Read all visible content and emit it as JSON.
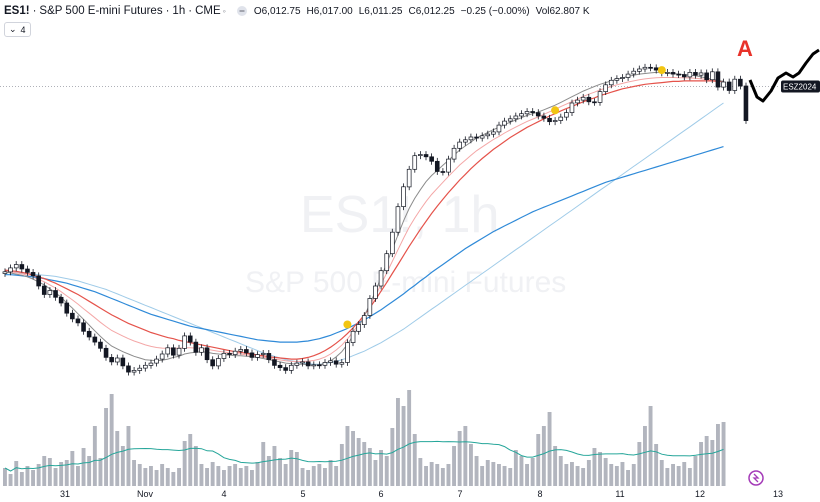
{
  "legend": {
    "symbol": "ES1!",
    "instrument": "S&P 500 E-mini Futures",
    "interval": "1h",
    "exchange": "CME",
    "open_label": "O",
    "open": "6,012.75",
    "high_label": "H",
    "high": "6,017.00",
    "low_label": "L",
    "low": "6,011.25",
    "close_label": "C",
    "close": "6,012.25",
    "change": "−0.25 (−0.00%)",
    "vol_label": "Vol",
    "vol": "62.807 K",
    "indicator_count": "4"
  },
  "watermark": {
    "symbol": "ES1!, 1h",
    "name": "S&P 500 E-mini Futures"
  },
  "price_tag": "ESZ2024",
  "annotation": "A",
  "colors": {
    "up": "#131722",
    "down": "#131722",
    "ma_gray": "#8c8c8c",
    "ma_red": "#e5534b",
    "ma_blue": "#2f8ad8",
    "ma_lightblue": "#9fcbe8",
    "ma_pink": "#f4a7a7",
    "volume": "#b2b5be",
    "vol_ma": "#26a69a",
    "marker": "#f2c511",
    "tag_bg": "#131722"
  },
  "chart_data": {
    "type": "line",
    "title": "ES1! · S&P 500 E-mini Futures · 1h · CME",
    "x_ticks": [
      "31",
      "Nov",
      "4",
      "5",
      "6",
      "7",
      "8",
      "11",
      "12",
      "13"
    ],
    "price": [
      5745,
      5752,
      5758,
      5750,
      5744,
      5738,
      5720,
      5705,
      5712,
      5700,
      5690,
      5672,
      5662,
      5655,
      5640,
      5630,
      5621,
      5610,
      5594,
      5586,
      5593,
      5579,
      5568,
      5571,
      5575,
      5580,
      5584,
      5591,
      5600,
      5611,
      5598,
      5610,
      5632,
      5621,
      5603,
      5611,
      5590,
      5579,
      5592,
      5601,
      5599,
      5605,
      5608,
      5602,
      5594,
      5599,
      5601,
      5590,
      5580,
      5576,
      5571,
      5580,
      5584,
      5586,
      5579,
      5581,
      5580,
      5585,
      5588,
      5582,
      5585,
      5620,
      5640,
      5652,
      5668,
      5698,
      5720,
      5747,
      5777,
      5815,
      5860,
      5895,
      5926,
      5950,
      5952,
      5948,
      5940,
      5922,
      5921,
      5944,
      5963,
      5974,
      5978,
      5983,
      5981,
      5985,
      5988,
      5992,
      6004,
      6011,
      6015,
      6020,
      6024,
      6028,
      6026,
      6020,
      6016,
      6010,
      6012,
      6018,
      6026,
      6043,
      6048,
      6053,
      6045,
      6044,
      6063,
      6075,
      6083,
      6086,
      6088,
      6094,
      6099,
      6103,
      6106,
      6105,
      6101,
      6096,
      6097,
      6094,
      6093,
      6089,
      6097,
      6092,
      6096,
      6084,
      6098,
      6071,
      6080,
      6065,
      6085,
      6073,
      6012
    ],
    "ma_gray": [
      5745,
      5743,
      5741,
      5739,
      5736,
      5732,
      5727,
      5722,
      5715,
      5708,
      5700,
      5690,
      5681,
      5671,
      5661,
      5651,
      5641,
      5631,
      5622,
      5614,
      5609,
      5604,
      5600,
      5596,
      5593,
      5590,
      5589,
      5588,
      5589,
      5591,
      5594,
      5596,
      5600,
      5602,
      5603,
      5604,
      5603,
      5601,
      5600,
      5599,
      5598,
      5597,
      5597,
      5596,
      5595,
      5594,
      5592,
      5590,
      5588,
      5586,
      5584,
      5583,
      5582,
      5582,
      5581,
      5580,
      5581,
      5583,
      5588,
      5595,
      5604,
      5617,
      5632,
      5648,
      5667,
      5688,
      5711,
      5735,
      5760,
      5785,
      5810,
      5835,
      5857,
      5875,
      5890,
      5904,
      5915,
      5924,
      5933,
      5942,
      5951,
      5960,
      5967,
      5974,
      5981,
      5986,
      5991,
      5996,
      6000,
      6005,
      6009,
      6013,
      6017,
      6021,
      6024,
      6027,
      6031,
      6035,
      6039,
      6044,
      6049,
      6054,
      6059,
      6064,
      6068,
      6072,
      6076,
      6079,
      6082,
      6085,
      6087,
      6090,
      6092,
      6094,
      6095,
      6096,
      6097,
      6097,
      6096,
      6095,
      6094,
      6093,
      6092,
      6091,
      6089,
      6087,
      6085,
      6083,
      6081
    ],
    "ma_red": [
      5748,
      5747,
      5746,
      5744,
      5742,
      5739,
      5736,
      5733,
      5729,
      5725,
      5720,
      5715,
      5710,
      5705,
      5699,
      5693,
      5687,
      5681,
      5675,
      5669,
      5664,
      5659,
      5654,
      5650,
      5646,
      5642,
      5638,
      5635,
      5632,
      5629,
      5627,
      5624,
      5622,
      5620,
      5618,
      5616,
      5614,
      5612,
      5610,
      5608,
      5606,
      5604,
      5603,
      5601,
      5600,
      5598,
      5597,
      5595,
      5594,
      5593,
      5592,
      5591,
      5591,
      5592,
      5594,
      5597,
      5601,
      5606,
      5612,
      5619,
      5627,
      5636,
      5646,
      5657,
      5669,
      5682,
      5696,
      5711,
      5726,
      5742,
      5758,
      5774,
      5790,
      5805,
      5820,
      5834,
      5848,
      5861,
      5873,
      5885,
      5896,
      5907,
      5917,
      5927,
      5936,
      5945,
      5953,
      5961,
      5968,
      5975,
      5982,
      5988,
      5994,
      6000,
      6005,
      6010,
      6015,
      6020,
      6024,
      6029,
      6033,
      6037,
      6041,
      6045,
      6049,
      6052,
      6056,
      6059,
      6062,
      6065,
      6068,
      6070,
      6072,
      6074,
      6076,
      6077,
      6078,
      6079,
      6080,
      6081,
      6081,
      6082,
      6082,
      6082,
      6082,
      6082,
      6082,
      6081,
      6081
    ],
    "ma_blue": [
      5740,
      5740,
      5739,
      5738,
      5737,
      5736,
      5735,
      5733,
      5731,
      5729,
      5727,
      5725,
      5722,
      5719,
      5716,
      5713,
      5710,
      5706,
      5702,
      5698,
      5694,
      5690,
      5686,
      5682,
      5678,
      5674,
      5670,
      5667,
      5664,
      5661,
      5658,
      5655,
      5652,
      5649,
      5647,
      5645,
      5643,
      5641,
      5639,
      5637,
      5635,
      5633,
      5631,
      5629,
      5627,
      5625,
      5624,
      5623,
      5622,
      5621,
      5621,
      5621,
      5621,
      5622,
      5623,
      5625,
      5627,
      5630,
      5633,
      5637,
      5641,
      5645,
      5650,
      5655,
      5660,
      5666,
      5672,
      5678,
      5685,
      5692,
      5699,
      5706,
      5714,
      5721,
      5729,
      5736,
      5744,
      5751,
      5758,
      5765,
      5772,
      5779,
      5786,
      5792,
      5798,
      5804,
      5810,
      5816,
      5821,
      5826,
      5831,
      5836,
      5841,
      5846,
      5851,
      5855,
      5859,
      5863,
      5867,
      5871,
      5875,
      5879,
      5883,
      5887,
      5891,
      5895,
      5899,
      5903,
      5906,
      5909,
      5912,
      5915,
      5918,
      5921,
      5924,
      5927,
      5930,
      5933,
      5936,
      5939,
      5942,
      5945,
      5948,
      5951,
      5954,
      5957,
      5960,
      5963,
      5966
    ],
    "ma_lightblue": [
      5745,
      5745,
      5744,
      5743,
      5742,
      5741,
      5740,
      5739,
      5738,
      5737,
      5735,
      5733,
      5731,
      5729,
      5726,
      5723,
      5720,
      5717,
      5714,
      5710,
      5706,
      5702,
      5698,
      5694,
      5690,
      5686,
      5682,
      5678,
      5674,
      5670,
      5666,
      5662,
      5658,
      5654,
      5650,
      5646,
      5642,
      5638,
      5634,
      5630,
      5626,
      5622,
      5618,
      5614,
      5610,
      5606,
      5602,
      5599,
      5596,
      5593,
      5590,
      5588,
      5586,
      5584,
      5583,
      5582,
      5582,
      5583,
      5585,
      5587,
      5590,
      5593,
      5597,
      5601,
      5605,
      5610,
      5615,
      5620,
      5626,
      5632,
      5638,
      5644,
      5651,
      5658,
      5665,
      5672,
      5679,
      5686,
      5693,
      5700,
      5707,
      5714,
      5721,
      5728,
      5735,
      5742,
      5749,
      5756,
      5763,
      5770,
      5777,
      5784,
      5791,
      5798,
      5805,
      5812,
      5819,
      5826,
      5833,
      5840,
      5847,
      5854,
      5861,
      5868,
      5875,
      5882,
      5889,
      5896,
      5903,
      5910,
      5917,
      5924,
      5931,
      5938,
      5945,
      5952,
      5959,
      5966,
      5973,
      5980,
      5987,
      5994,
      6001,
      6008,
      6015,
      6022,
      6029,
      6036,
      6043
    ],
    "volume": [
      18,
      12,
      25,
      14,
      20,
      16,
      22,
      30,
      28,
      18,
      24,
      26,
      35,
      20,
      38,
      30,
      60,
      28,
      78,
      92,
      55,
      40,
      60,
      26,
      22,
      18,
      20,
      16,
      22,
      18,
      14,
      18,
      45,
      52,
      40,
      22,
      18,
      24,
      20,
      16,
      20,
      22,
      18,
      20,
      16,
      24,
      44,
      30,
      40,
      28,
      22,
      36,
      34,
      18,
      16,
      20,
      22,
      18,
      26,
      20,
      42,
      60,
      55,
      48,
      44,
      38,
      26,
      36,
      30,
      58,
      88,
      80,
      96,
      52,
      28,
      20,
      24,
      22,
      18,
      22,
      40,
      55,
      60,
      42,
      30,
      20,
      26,
      24,
      22,
      20,
      18,
      36,
      30,
      22,
      28,
      52,
      60,
      74,
      40,
      30,
      22,
      24,
      20,
      18,
      26,
      38,
      34,
      28,
      22,
      20,
      24,
      16,
      22,
      44,
      60,
      80,
      42,
      26,
      18,
      22,
      20,
      24,
      18,
      30,
      44,
      50,
      46,
      62,
      64
    ],
    "ylim": [
      5540,
      6140
    ],
    "annotations": [
      "A",
      "ESZ2024"
    ]
  }
}
